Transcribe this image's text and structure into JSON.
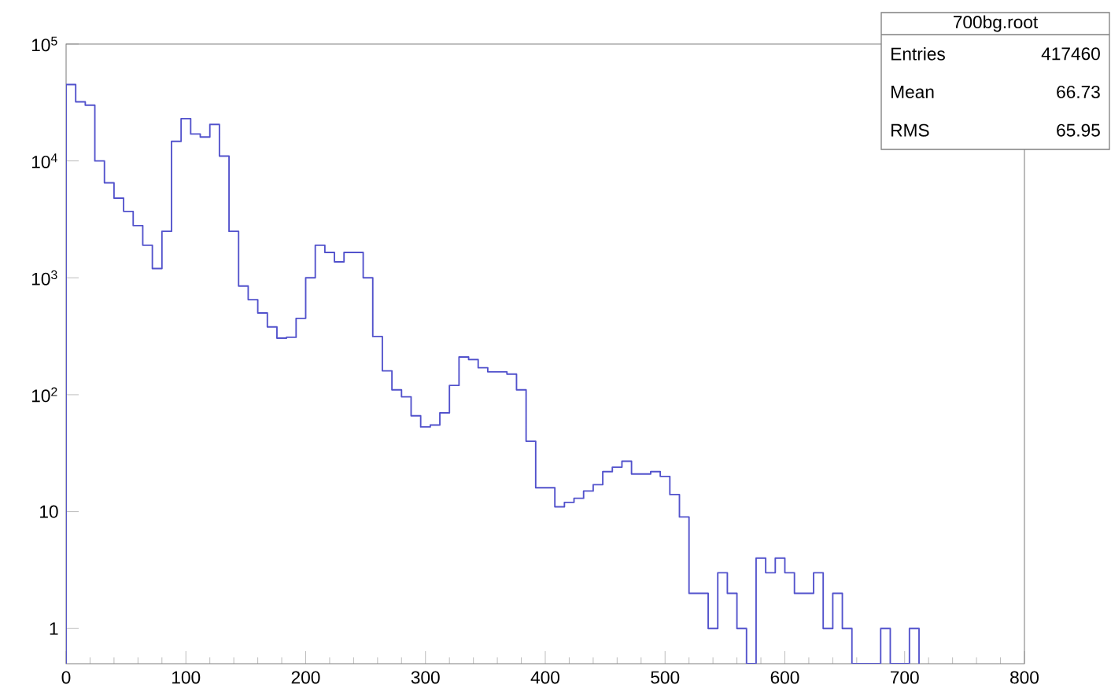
{
  "chart_data": {
    "type": "histogram",
    "log": true,
    "color": "#5252cc",
    "bins": [
      0,
      8,
      16,
      24,
      32,
      40,
      48,
      56,
      64,
      72,
      80,
      88,
      96,
      104,
      112,
      120,
      128,
      136,
      144,
      152,
      160,
      168,
      176,
      184,
      192,
      200,
      208,
      216,
      224,
      232,
      240,
      248,
      256,
      264,
      272,
      280,
      288,
      296,
      304,
      312,
      320,
      328,
      336,
      344,
      352,
      360,
      368,
      376,
      384,
      392,
      400,
      408,
      416,
      424,
      432,
      440,
      448,
      456,
      464,
      472,
      480,
      488,
      496,
      504,
      512,
      520,
      528,
      536,
      544,
      552,
      560,
      568,
      576,
      584,
      592,
      600,
      608,
      616,
      624,
      632,
      640,
      648,
      656,
      664,
      672,
      680,
      688,
      696,
      704,
      712
    ],
    "values": [
      45000,
      32000,
      30000,
      10000,
      6500,
      4800,
      3700,
      2800,
      1900,
      1200,
      2500,
      14700,
      23000,
      17000,
      16000,
      20500,
      11000,
      2500,
      850,
      650,
      500,
      380,
      305,
      310,
      450,
      1000,
      1900,
      1650,
      1370,
      1650,
      1650,
      1000,
      315,
      160,
      110,
      96,
      66,
      53,
      55,
      70,
      120,
      210,
      200,
      170,
      157,
      157,
      150,
      110,
      40,
      16,
      16,
      11,
      12,
      13,
      15,
      17,
      22,
      24,
      27,
      21,
      21,
      22,
      20,
      14,
      9,
      2,
      2,
      1,
      3,
      2,
      1,
      null,
      4,
      3,
      4,
      3,
      2,
      2,
      3,
      1,
      2,
      1,
      null,
      null,
      null,
      1,
      null,
      null,
      1
    ],
    "xlim": [
      0,
      800
    ],
    "ylim": [
      0.5,
      100000
    ],
    "xticks": [
      0,
      100,
      200,
      300,
      400,
      500,
      600,
      700,
      800
    ],
    "yticks": [
      1,
      10,
      {
        "value": 100,
        "label": "10$^{2}$"
      },
      {
        "value": 1000,
        "label": "10$^{3}$"
      },
      {
        "value": 10000,
        "label": "10$^{4}$"
      },
      {
        "value": 100000,
        "label": "10$^{5}$"
      }
    ],
    "annotations": [
      "700bg.root",
      "Entries",
      "417460",
      "Mean",
      "66.73",
      "RMS",
      "65.95"
    ]
  }
}
